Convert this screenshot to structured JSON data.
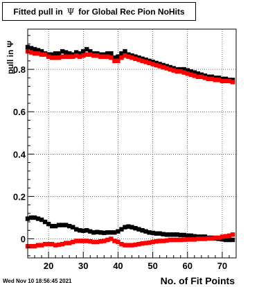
{
  "title": {
    "prefix": "Fitted pull in",
    "symbol": "Ψ",
    "suffix": "for Global Rec Pion NoHits"
  },
  "timestamp": "Wed Nov 10 18:56:45 2021",
  "colors": {
    "black_series": "#000000",
    "red_series": "#ff0000",
    "frame": "#000000"
  },
  "chart_data": {
    "type": "scatter",
    "xlabel": "No. of Fit Points",
    "ylabel": "pull in Ψ",
    "xlim": [
      14,
      74
    ],
    "ylim": [
      -0.09,
      0.99
    ],
    "xticks": [
      20,
      30,
      40,
      50,
      60,
      70
    ],
    "yticks": [
      0,
      0.2,
      0.4,
      0.6,
      0.8
    ],
    "grid": true,
    "marker": "square",
    "x": [
      14,
      15,
      16,
      17,
      18,
      19,
      20,
      21,
      22,
      23,
      24,
      25,
      26,
      27,
      28,
      29,
      30,
      31,
      32,
      33,
      34,
      35,
      36,
      37,
      38,
      39,
      40,
      41,
      42,
      43,
      44,
      45,
      46,
      47,
      48,
      49,
      50,
      51,
      52,
      53,
      54,
      55,
      56,
      57,
      58,
      59,
      60,
      61,
      62,
      63,
      64,
      65,
      66,
      67,
      68,
      69,
      70,
      71,
      72,
      73
    ],
    "series": [
      {
        "color": "#000000",
        "values": [
          0.905,
          0.9,
          0.895,
          0.89,
          0.885,
          0.875,
          0.87,
          0.87,
          0.875,
          0.875,
          0.885,
          0.88,
          0.875,
          0.87,
          0.88,
          0.875,
          0.885,
          0.895,
          0.885,
          0.875,
          0.875,
          0.87,
          0.87,
          0.875,
          0.875,
          0.855,
          0.86,
          0.875,
          0.885,
          0.87,
          0.865,
          0.86,
          0.855,
          0.85,
          0.845,
          0.84,
          0.835,
          0.83,
          0.825,
          0.82,
          0.815,
          0.81,
          0.805,
          0.8,
          0.8,
          0.8,
          0.795,
          0.79,
          0.785,
          0.78,
          0.775,
          0.77,
          0.765,
          0.765,
          0.76,
          0.76,
          0.755,
          0.755,
          0.75,
          0.75
        ]
      },
      {
        "color": "#000000",
        "values": [
          0.095,
          0.1,
          0.1,
          0.095,
          0.09,
          0.08,
          0.07,
          0.06,
          0.06,
          0.065,
          0.065,
          0.065,
          0.06,
          0.055,
          0.045,
          0.04,
          0.038,
          0.04,
          0.035,
          0.03,
          0.032,
          0.03,
          0.028,
          0.03,
          0.03,
          0.03,
          0.035,
          0.045,
          0.055,
          0.058,
          0.055,
          0.05,
          0.045,
          0.04,
          0.035,
          0.03,
          0.028,
          0.025,
          0.025,
          0.022,
          0.02,
          0.02,
          0.02,
          0.02,
          0.018,
          0.018,
          0.015,
          0.015,
          0.012,
          0.01,
          0.01,
          0.01,
          0.005,
          0.005,
          0.002,
          0.0,
          -0.002,
          -0.005,
          -0.005,
          -0.005
        ]
      },
      {
        "color": "#ff0000",
        "values": [
          0.885,
          0.88,
          0.875,
          0.875,
          0.87,
          0.87,
          0.86,
          0.855,
          0.855,
          0.855,
          0.86,
          0.86,
          0.86,
          0.86,
          0.865,
          0.86,
          0.865,
          0.87,
          0.87,
          0.865,
          0.865,
          0.86,
          0.86,
          0.86,
          0.855,
          0.84,
          0.84,
          0.855,
          0.865,
          0.86,
          0.855,
          0.85,
          0.845,
          0.84,
          0.835,
          0.83,
          0.825,
          0.82,
          0.815,
          0.81,
          0.805,
          0.8,
          0.795,
          0.79,
          0.79,
          0.785,
          0.78,
          0.775,
          0.77,
          0.765,
          0.765,
          0.76,
          0.755,
          0.755,
          0.75,
          0.75,
          0.745,
          0.745,
          0.745,
          0.74
        ]
      },
      {
        "color": "#ff0000",
        "values": [
          -0.035,
          -0.035,
          -0.035,
          -0.03,
          -0.03,
          -0.025,
          -0.025,
          -0.025,
          -0.03,
          -0.028,
          -0.025,
          -0.02,
          -0.02,
          -0.015,
          -0.01,
          -0.01,
          -0.01,
          -0.01,
          -0.012,
          -0.015,
          -0.015,
          -0.012,
          -0.01,
          -0.005,
          0.0,
          -0.01,
          -0.015,
          -0.025,
          -0.03,
          -0.03,
          -0.03,
          -0.028,
          -0.025,
          -0.022,
          -0.02,
          -0.018,
          -0.015,
          -0.012,
          -0.01,
          -0.01,
          -0.008,
          -0.005,
          -0.005,
          -0.005,
          -0.005,
          -0.004,
          -0.003,
          -0.003,
          -0.003,
          0.0,
          0.0,
          0.0,
          0.002,
          0.002,
          0.005,
          0.005,
          0.01,
          0.012,
          0.015,
          0.02
        ]
      }
    ]
  }
}
